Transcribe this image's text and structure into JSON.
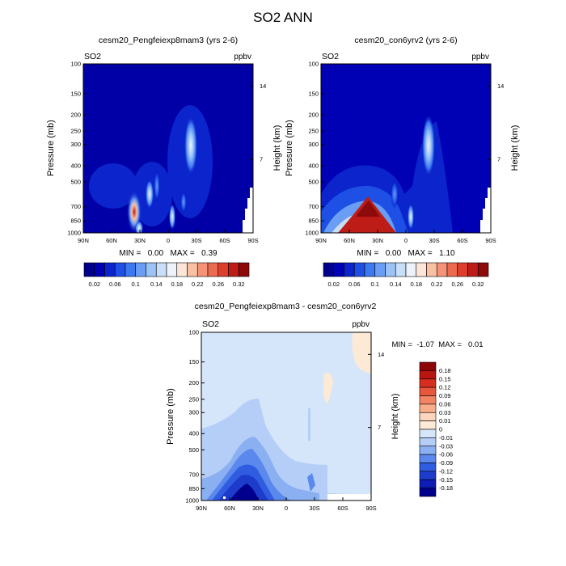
{
  "title": "SO2 ANN",
  "colors": {
    "abs_scale": [
      "#00008c",
      "#0000b4",
      "#0b24cc",
      "#1e50e6",
      "#3c78f0",
      "#6a9ef5",
      "#9cc3f7",
      "#c8dffa",
      "#eef3fb",
      "#fde6d8",
      "#f9c0a4",
      "#f49377",
      "#ec6a4f",
      "#dd3f2c",
      "#bd1d16",
      "#8c0a0a"
    ],
    "diff_scale": [
      "#00008c",
      "#0c1cb4",
      "#1e3ccc",
      "#2f5ce0",
      "#5a88ec",
      "#8ab0f2",
      "#b5cef7",
      "#d6e6fa",
      "#fce9d6",
      "#fbd5bd",
      "#f7ad8a",
      "#f28463",
      "#e8563c",
      "#d62f1f",
      "#b81611",
      "#8c0707"
    ]
  },
  "chart_data": [
    {
      "type": "heatmap",
      "title": "cesm20_Pengfeiexp8mam3 (yrs 2-6)",
      "variable": "SO2",
      "units": "ppbv",
      "ylabel": "Pressure (mb)",
      "y2label": "Height (km)",
      "xticks": [
        "90N",
        "60N",
        "30N",
        "0",
        "30S",
        "60S",
        "90S"
      ],
      "yticks": [
        "100",
        "150",
        "200",
        "250",
        "300",
        "400",
        "500",
        "700",
        "850",
        "1000"
      ],
      "y2ticks": [
        "14",
        "7"
      ],
      "stats": "MIN =   0.00   MAX =   0.39",
      "colorbar_labels": [
        "0.02",
        "0.06",
        "0.1",
        "0.14",
        "0.18",
        "0.22",
        "0.26",
        "0.32"
      ],
      "features": [
        {
          "lat": 31,
          "p": 730,
          "value": 0.39
        },
        {
          "lat": 28,
          "p": 880,
          "value": 0.14
        },
        {
          "lat": 18,
          "p": 520,
          "value": 0.1
        },
        {
          "lat": 10,
          "p": 680,
          "value": 0.12
        },
        {
          "lat": -2,
          "p": 820,
          "value": 0.12
        },
        {
          "lat": -22,
          "p": 320,
          "value": 0.16
        },
        {
          "lat": -4,
          "p": 470,
          "value": 0.06
        }
      ]
    },
    {
      "type": "heatmap",
      "title": "cesm20_con6yrv2 (yrs 2-6)",
      "variable": "SO2",
      "units": "ppbv",
      "ylabel": "Pressure (mb)",
      "y2label": "Height (km)",
      "xticks": [
        "90N",
        "60N",
        "30N",
        "0",
        "30S",
        "60S",
        "90S"
      ],
      "yticks": [
        "100",
        "150",
        "200",
        "250",
        "300",
        "400",
        "500",
        "700",
        "850",
        "1000"
      ],
      "y2ticks": [
        "14",
        "7"
      ],
      "stats": "MIN =   0.00   MAX =   1.10",
      "colorbar_labels": [
        "0.02",
        "0.06",
        "0.1",
        "0.14",
        "0.18",
        "0.22",
        "0.26",
        "0.32"
      ],
      "features": [
        {
          "lat": 35,
          "p": 900,
          "value": 1.1
        },
        {
          "lat": 35,
          "p": 650,
          "value": 0.2
        },
        {
          "lat": 45,
          "p": 500,
          "value": 0.06
        },
        {
          "lat": -22,
          "p": 320,
          "value": 0.16
        },
        {
          "lat": 2,
          "p": 800,
          "value": 0.14
        }
      ]
    },
    {
      "type": "heatmap",
      "title": "cesm20_Pengfeiexp8mam3 - cesm20_con6yrv2",
      "variable": "SO2",
      "units": "ppbv",
      "ylabel": "Pressure (mb)",
      "y2label": "Height (km)",
      "xticks": [
        "90N",
        "60N",
        "30N",
        "0",
        "30S",
        "60S",
        "90S"
      ],
      "yticks": [
        "100",
        "150",
        "200",
        "250",
        "300",
        "400",
        "500",
        "700",
        "850",
        "1000"
      ],
      "y2ticks": [
        "14",
        "7"
      ],
      "stats": "MIN =  -1.07  MAX =   0.01",
      "colorbar_labels": [
        "0.18",
        "0.15",
        "0.12",
        "0.09",
        "0.06",
        "0.03",
        "0.01",
        "0",
        "-0.01",
        "-0.03",
        "-0.06",
        "-0.09",
        "-0.12",
        "-0.15",
        "-0.18"
      ],
      "features": [
        {
          "lat": 35,
          "p": 920,
          "value": -1.07
        },
        {
          "lat": -80,
          "p": 130,
          "value": 0.01
        }
      ]
    }
  ]
}
